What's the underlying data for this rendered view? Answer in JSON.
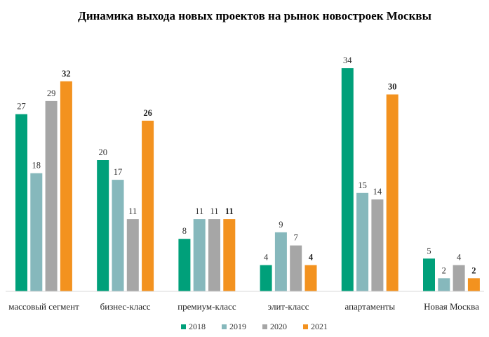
{
  "chart_data": {
    "type": "bar",
    "title": "Динамика выхода новых проектов на рынок новостроек Москвы",
    "categories": [
      "массовый сегмент",
      "бизнес-класс",
      "премиум-класс",
      "элит-класс",
      "апартаменты",
      "Новая Москва"
    ],
    "series": [
      {
        "name": "2018",
        "color": "#00a07a",
        "values": [
          27,
          20,
          8,
          4,
          34,
          5
        ]
      },
      {
        "name": "2019",
        "color": "#86b8bc",
        "values": [
          18,
          17,
          11,
          9,
          15,
          2
        ]
      },
      {
        "name": "2020",
        "color": "#a6a6a6",
        "values": [
          29,
          11,
          11,
          7,
          14,
          4
        ]
      },
      {
        "name": "2021",
        "color": "#f3921f",
        "values": [
          32,
          26,
          11,
          4,
          30,
          2
        ]
      }
    ],
    "bold_series": "2021",
    "ylim": [
      0,
      34
    ],
    "grid": false,
    "legend_position": "bottom"
  }
}
